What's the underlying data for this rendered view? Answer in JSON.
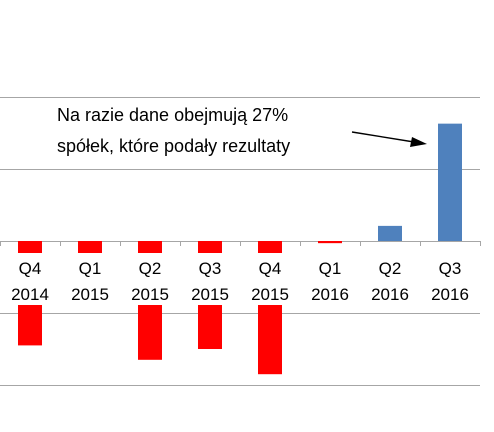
{
  "chart_data": {
    "type": "bar",
    "categories": [
      "Q4 2014",
      "Q1 2015",
      "Q2 2015",
      "Q3 2015",
      "Q4 2015",
      "Q1 2016",
      "Q2 2016",
      "Q3 2016"
    ],
    "category_lines": [
      [
        "Q4",
        "2014"
      ],
      [
        "Q1",
        "2015"
      ],
      [
        "Q2",
        "2015"
      ],
      [
        "Q3",
        "2015"
      ],
      [
        "Q4",
        "2015"
      ],
      [
        "Q1",
        "2016"
      ],
      [
        "Q2",
        "2016"
      ],
      [
        "Q3",
        "2016"
      ]
    ],
    "values": [
      -14.5,
      -5.3,
      -16.5,
      -15,
      -18.5,
      -0.3,
      2.1,
      16.3
    ],
    "bar_colors": [
      "#ff0000",
      "#ff0000",
      "#ff0000",
      "#ff0000",
      "#ff0000",
      "#ff0000",
      "#4f81bd",
      "#4f81bd"
    ],
    "ylim": [
      -20,
      24
    ],
    "gridlines": [
      20,
      10,
      0,
      -10,
      -20
    ],
    "grid": true,
    "annotation": {
      "lines": [
        "Na razie dane obejmują 27%",
        "spółek, które podały rezultaty"
      ],
      "target_category": "Q3 2016"
    }
  }
}
